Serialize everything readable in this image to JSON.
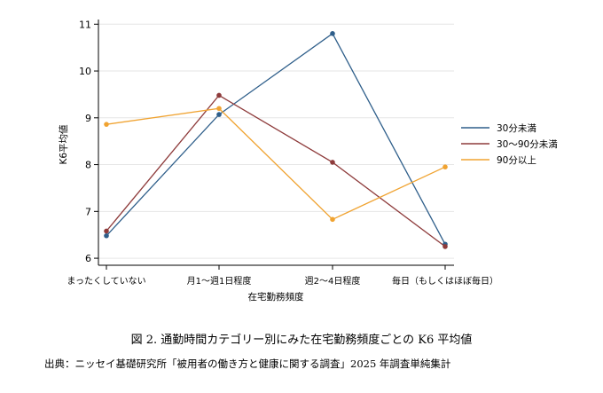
{
  "chart_data": {
    "type": "line",
    "ylabel": "K6平均値",
    "xlabel": "在宅勤務頻度",
    "categories": [
      "まったくしていない",
      "月1〜週1日程度",
      "週2〜4日程度",
      "毎日（もしくはほぼ毎日）"
    ],
    "ylim": [
      5.85,
      11.1
    ],
    "yticks": [
      6,
      7,
      8,
      9,
      10,
      11
    ],
    "grid": true,
    "legend_position": "right",
    "series": [
      {
        "name": "30分未満",
        "color": "#2e5e8a",
        "values": [
          6.48,
          9.07,
          10.8,
          6.3
        ]
      },
      {
        "name": "30〜90分未満",
        "color": "#8e3b3b",
        "values": [
          6.58,
          9.48,
          8.05,
          6.25
        ]
      },
      {
        "name": "90分以上",
        "color": "#f0a331",
        "values": [
          8.86,
          9.2,
          6.83,
          7.95
        ]
      }
    ]
  },
  "caption": "図 2. 通勤時間カテゴリー別にみた在宅勤務頻度ごとの K6 平均値",
  "source": "出典：ニッセイ基礎研究所「被用者の働き方と健康に関する調査」2025 年調査単純集計"
}
